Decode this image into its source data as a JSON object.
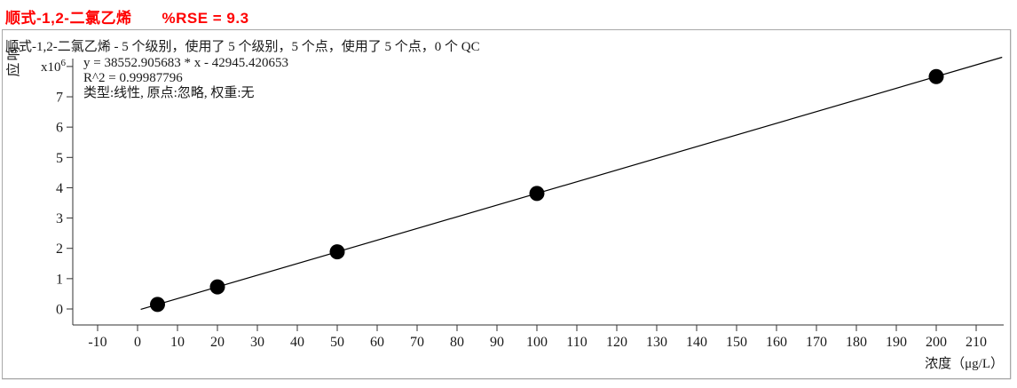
{
  "header": {
    "title": "顺式-1,2-二氯乙烯",
    "rse_text": "%RSE = 9.3",
    "title_color": "#ff0000"
  },
  "chart": {
    "subtitle": "顺式-1,2-二氯乙烯 - 5 个级别，使用了 5 个级别，5 个点，使用了 5 个点，0 个 QC",
    "equation": "y = 38552.905683 * x  - 42945.420653",
    "r_squared": "R^2 = 0.99987796",
    "fit_info": "类型:线性, 原点:忽略, 权重:无",
    "y_axis_char_1": "响",
    "y_axis_char_2": "应",
    "x_axis_title": "浓度（μg/L）"
  },
  "chart_data": {
    "type": "scatter",
    "title": "顺式-1,2-二氯乙烯  %RSE = 9.3",
    "xlabel": "浓度（μg/L）",
    "ylabel": "响应",
    "points": {
      "x": [
        5,
        20,
        50,
        100,
        200
      ],
      "y": [
        149819,
        728113,
        1884700,
        3812345,
        7667636
      ]
    },
    "fit": {
      "type_label": "线性",
      "origin_label": "忽略",
      "weight_label": "无",
      "slope": 38552.905683,
      "intercept": -42945.420653,
      "r2": 0.99987796,
      "rse_percent": 9.3
    },
    "x_axis": {
      "tick_min": -10,
      "tick_max": 210,
      "tick_step": 10,
      "range": [
        -16,
        218
      ]
    },
    "y_axis": {
      "tick_min": 0,
      "tick_max": 7,
      "tick_step": 1,
      "unit": 1000000,
      "multiplier_base": "x10",
      "multiplier_exp": "6",
      "multiplier_value": 8,
      "range": [
        -1050000,
        8600000
      ]
    },
    "grid": false,
    "legend": false,
    "marker_color": "#000000",
    "line_color": "#000000"
  }
}
